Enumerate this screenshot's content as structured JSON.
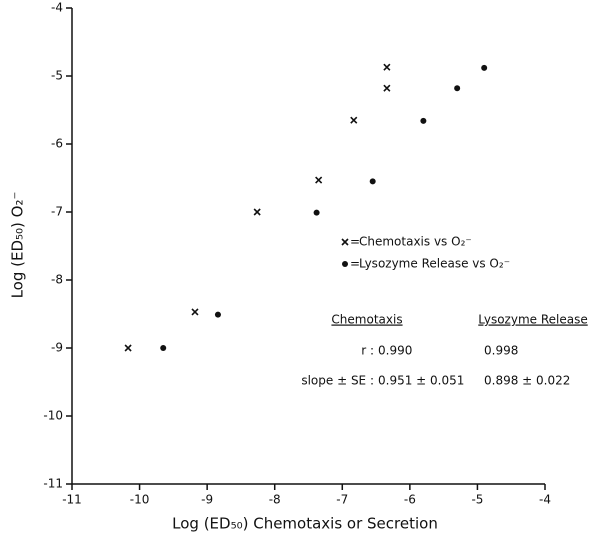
{
  "chart_data": {
    "type": "scatter",
    "xlabel": "Log (ED₅₀) Chemotaxis or Secretion",
    "ylabel": "Log (ED₅₀) O₂⁻",
    "xlim": [
      -11,
      -4
    ],
    "ylim": [
      -11,
      -4
    ],
    "xticks": [
      -11,
      -10,
      -9,
      -8,
      -7,
      -6,
      -5,
      -4
    ],
    "yticks": [
      -11,
      -10,
      -9,
      -8,
      -7,
      -6,
      -5,
      -4
    ],
    "legend_separator": "=",
    "series": [
      {
        "name": "Chemotaxis vs O₂⁻",
        "color": "#111111",
        "marker": "x",
        "x": [
          -10.17,
          -9.18,
          -8.26,
          -7.35,
          -6.83,
          -6.34,
          -6.34
        ],
        "values": [
          -9.0,
          -8.47,
          -7.0,
          -6.53,
          -5.65,
          -5.18,
          -4.87
        ]
      },
      {
        "name": "Lysozyme Release vs O₂⁻",
        "color": "#111111",
        "marker": "o",
        "x": [
          -9.65,
          -8.84,
          -7.38,
          -6.55,
          -5.8,
          -5.3,
          -4.9
        ],
        "values": [
          -9.0,
          -8.51,
          -7.01,
          -6.55,
          -5.66,
          -5.18,
          -4.88
        ]
      }
    ],
    "stats_table": {
      "columns": [
        "Chemotaxis",
        "Lysozyme Release"
      ],
      "rows": [
        {
          "label": "r :",
          "values": [
            "0.990",
            "0.998"
          ]
        },
        {
          "label": "slope ± SE :",
          "values": [
            "0.951 ± 0.051",
            "0.898 ± 0.022"
          ]
        }
      ]
    }
  }
}
